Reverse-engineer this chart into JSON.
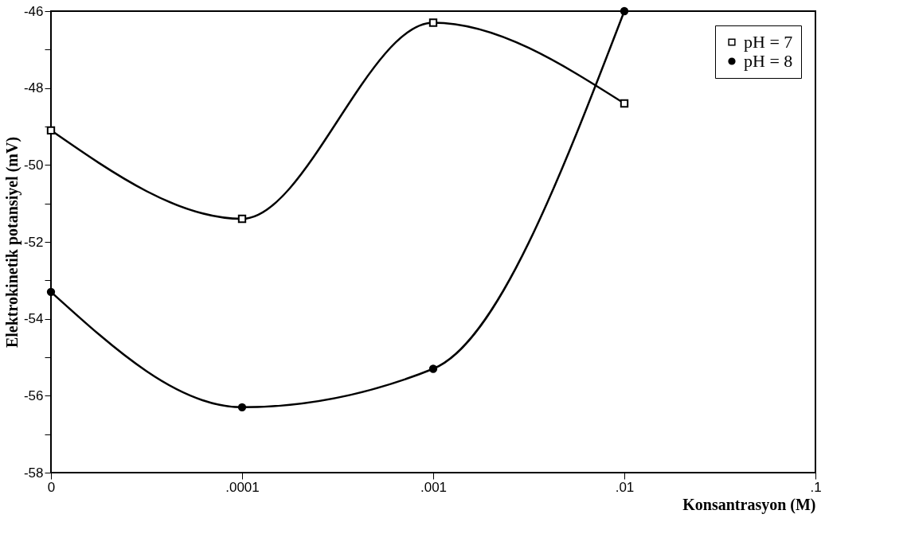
{
  "chart_data": {
    "type": "line",
    "xlabel": "Konsantrasyon  (M)",
    "ylabel": "Elektrokinetik  potansiyel  (mV)",
    "categories": [
      "0",
      ".0001",
      ".001",
      ".01",
      ".1"
    ],
    "series": [
      {
        "name": "pH = 7",
        "color": "#000000",
        "marker": "square",
        "values": [
          -49.1,
          -51.4,
          -46.3,
          -48.4,
          null
        ]
      },
      {
        "name": "pH = 8",
        "color": "#000000",
        "marker": "circle",
        "values": [
          -53.3,
          -56.3,
          -55.3,
          -46.0,
          null
        ]
      }
    ],
    "ylim": [
      -58,
      -46
    ],
    "yticks": [
      -58,
      {
        "value": -57,
        "label": null
      },
      -56,
      {
        "value": -55,
        "label": null
      },
      -54,
      {
        "value": -53,
        "label": null
      },
      -52,
      {
        "value": -51,
        "label": null
      },
      -50,
      {
        "value": -49,
        "label": null
      },
      -48,
      {
        "value": -47,
        "label": null
      },
      -46
    ],
    "grid": false,
    "legend": "top right",
    "line_style": "solid"
  }
}
